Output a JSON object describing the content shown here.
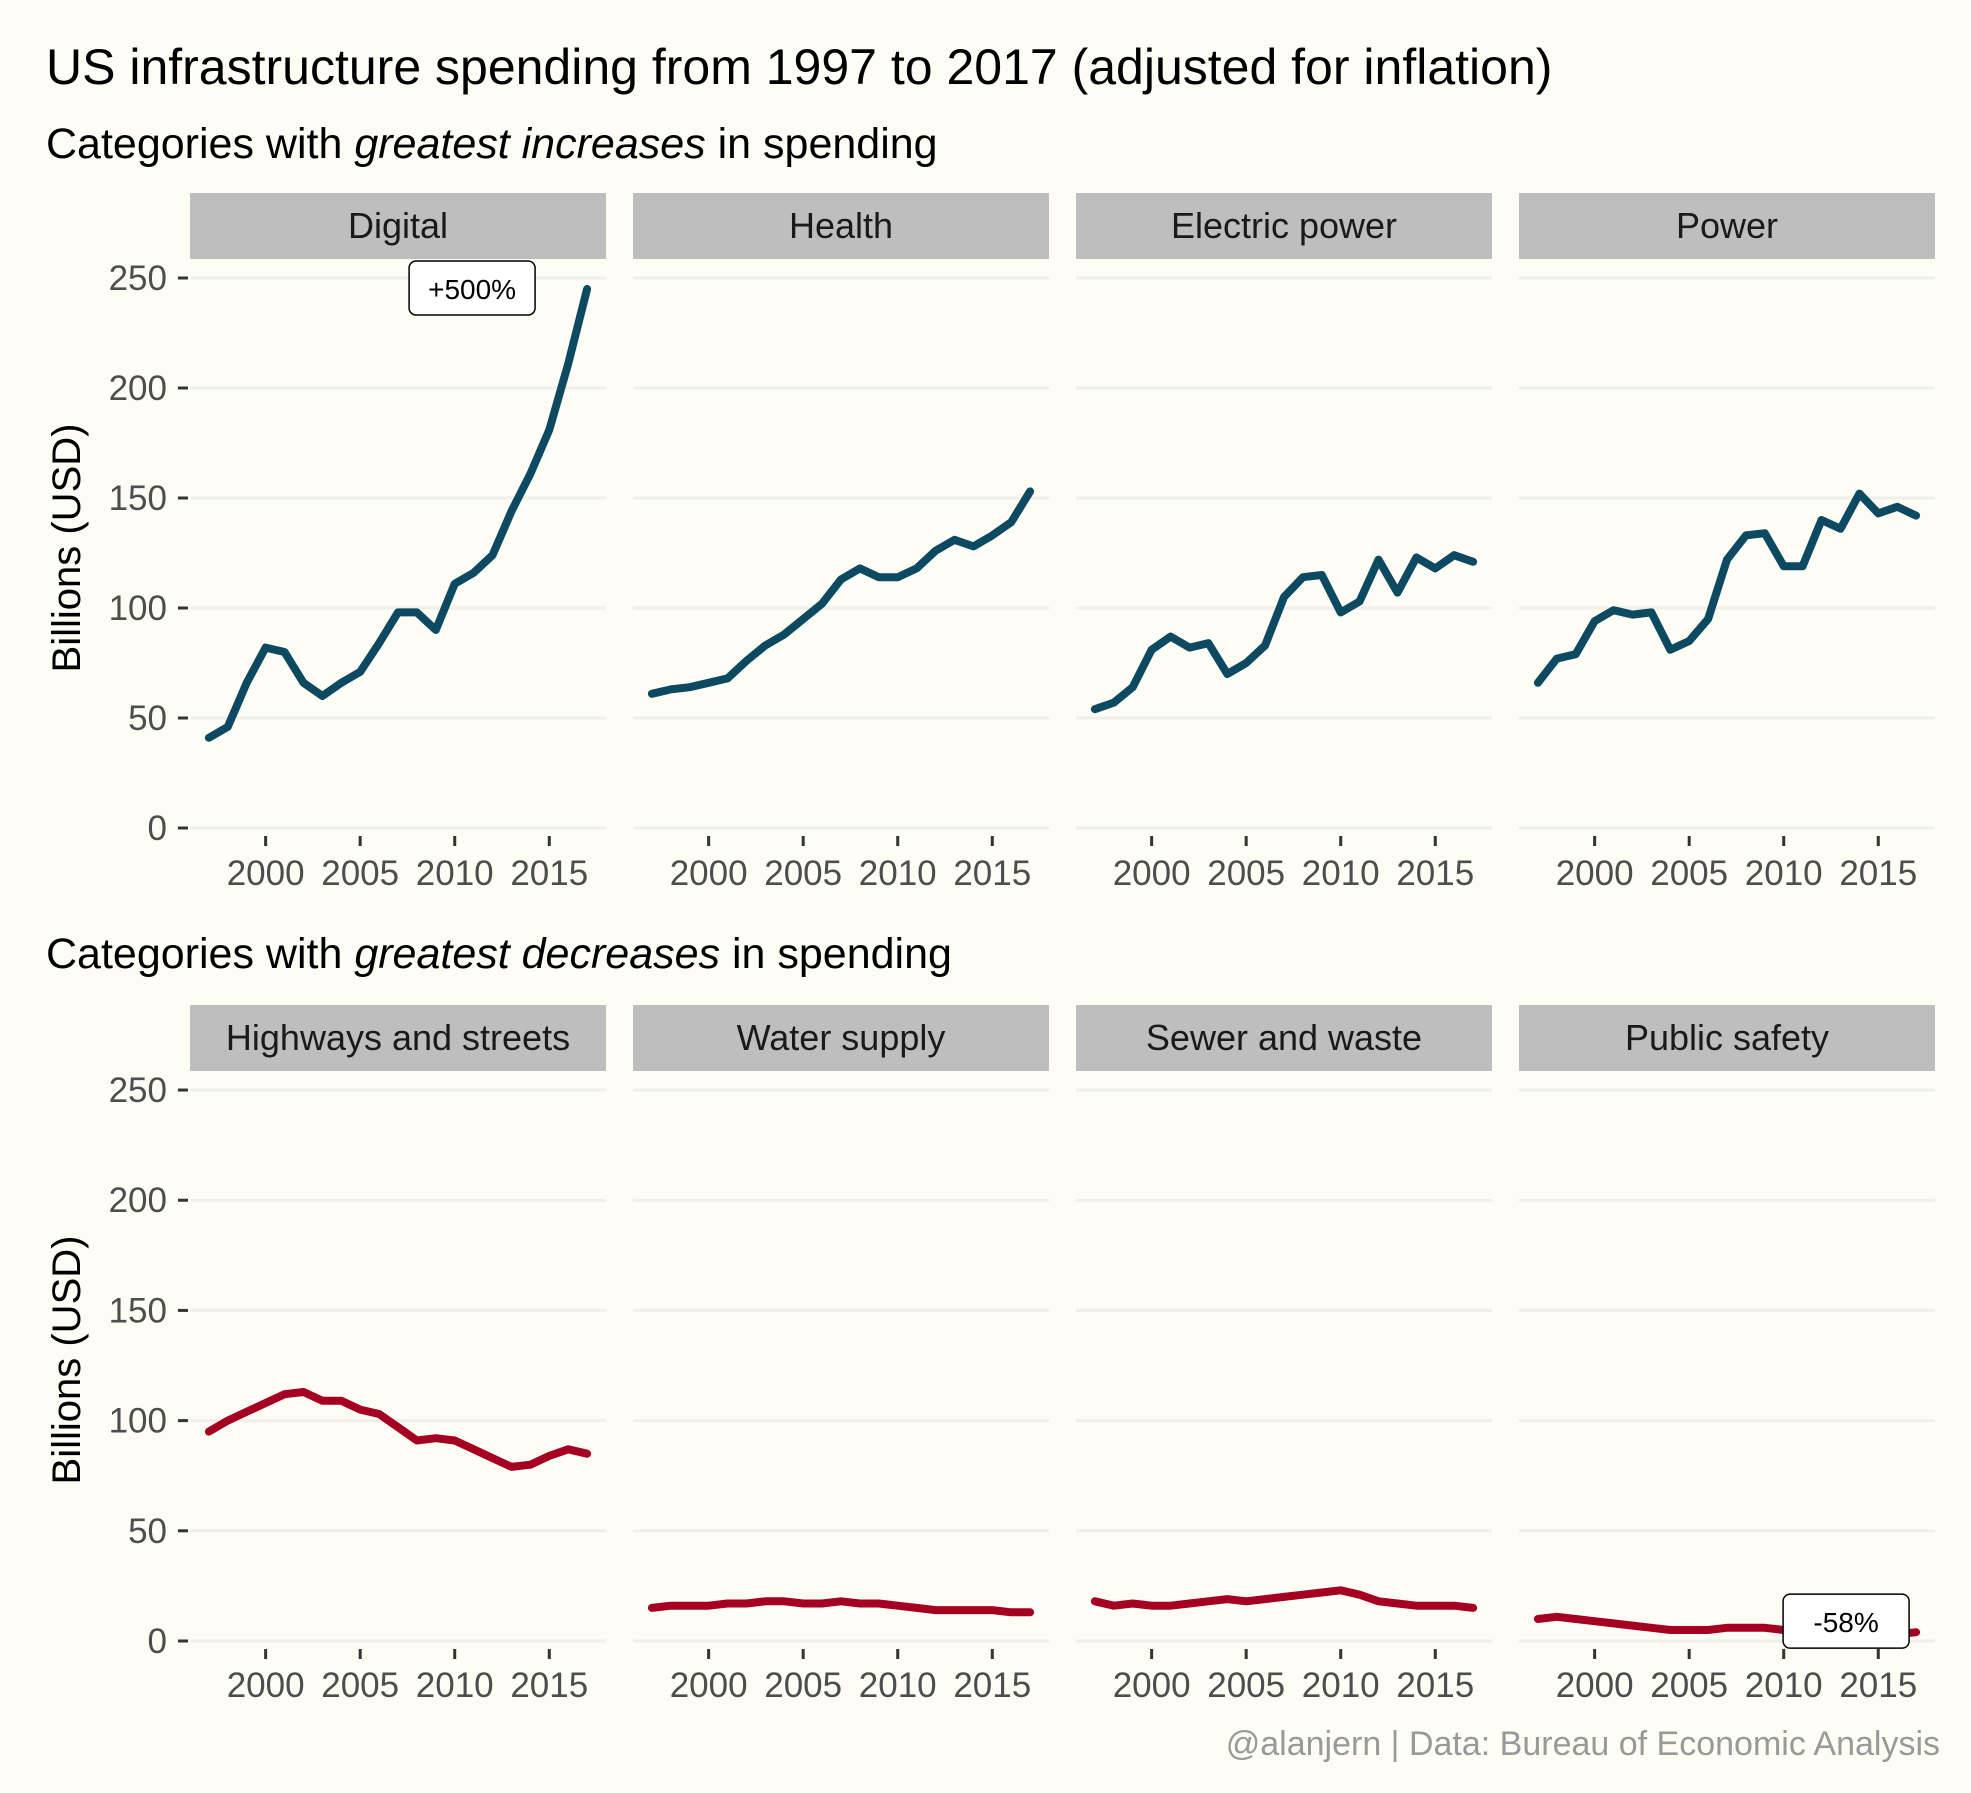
{
  "title": "US infrastructure spending from 1997 to 2017 (adjusted for inflation)",
  "caption": "@alanjern | Data: Bureau of Economic Analysis",
  "chart_data": [
    {
      "type": "line",
      "subtitle_parts": [
        {
          "text": "Categories with ",
          "italic": false
        },
        {
          "text": "greatest increases",
          "italic": true
        },
        {
          "text": " in spending",
          "italic": false
        }
      ],
      "ylabel": "Billions (USD)",
      "ylim": [
        0,
        260
      ],
      "yticks": [
        0,
        50,
        100,
        150,
        200,
        250
      ],
      "xlim": [
        1996,
        2018
      ],
      "xticks": [
        2000,
        2005,
        2010,
        2015
      ],
      "color": "#0d4a61",
      "x": [
        1997,
        1998,
        1999,
        2000,
        2001,
        2002,
        2003,
        2004,
        2005,
        2006,
        2007,
        2008,
        2009,
        2010,
        2011,
        2012,
        2013,
        2014,
        2015,
        2016,
        2017
      ],
      "panels": [
        {
          "name": "Digital",
          "values": [
            41,
            46,
            66,
            82,
            80,
            66,
            60,
            66,
            71,
            84,
            98,
            98,
            90,
            111,
            116,
            124,
            144,
            161,
            181,
            211,
            245
          ],
          "annotation": "+500%"
        },
        {
          "name": "Health",
          "values": [
            61,
            63,
            64,
            66,
            68,
            76,
            83,
            88,
            95,
            102,
            113,
            118,
            114,
            114,
            118,
            126,
            131,
            128,
            133,
            139,
            153
          ],
          "annotation": null
        },
        {
          "name": "Electric power",
          "values": [
            54,
            57,
            64,
            81,
            87,
            82,
            84,
            70,
            75,
            83,
            105,
            114,
            115,
            98,
            103,
            122,
            107,
            123,
            118,
            124,
            121
          ],
          "annotation": null
        },
        {
          "name": "Power",
          "values": [
            66,
            77,
            79,
            94,
            99,
            97,
            98,
            81,
            85,
            95,
            122,
            133,
            134,
            119,
            119,
            140,
            136,
            152,
            143,
            146,
            142
          ],
          "annotation": null
        }
      ]
    },
    {
      "type": "line",
      "subtitle_parts": [
        {
          "text": "Categories with ",
          "italic": false
        },
        {
          "text": "greatest decreases",
          "italic": true
        },
        {
          "text": " in spending",
          "italic": false
        }
      ],
      "ylabel": "Billions (USD)",
      "ylim": [
        0,
        260
      ],
      "yticks": [
        0,
        50,
        100,
        150,
        200,
        250
      ],
      "xlim": [
        1996,
        2018
      ],
      "xticks": [
        2000,
        2005,
        2010,
        2015
      ],
      "color": "#a50021",
      "x": [
        1997,
        1998,
        1999,
        2000,
        2001,
        2002,
        2003,
        2004,
        2005,
        2006,
        2007,
        2008,
        2009,
        2010,
        2011,
        2012,
        2013,
        2014,
        2015,
        2016,
        2017
      ],
      "panels": [
        {
          "name": "Highways and streets",
          "values": [
            95,
            100,
            104,
            108,
            112,
            113,
            109,
            109,
            105,
            103,
            97,
            91,
            92,
            91,
            87,
            83,
            79,
            80,
            84,
            87,
            85
          ],
          "annotation": null
        },
        {
          "name": "Water supply",
          "values": [
            15,
            16,
            16,
            16,
            17,
            17,
            18,
            18,
            17,
            17,
            18,
            17,
            17,
            16,
            15,
            14,
            14,
            14,
            14,
            13,
            13
          ],
          "annotation": null
        },
        {
          "name": "Sewer and waste",
          "values": [
            18,
            16,
            17,
            16,
            16,
            17,
            18,
            19,
            18,
            19,
            20,
            21,
            22,
            23,
            21,
            18,
            17,
            16,
            16,
            16,
            15
          ],
          "annotation": null
        },
        {
          "name": "Public safety",
          "values": [
            10,
            11,
            10,
            9,
            8,
            7,
            6,
            5,
            5,
            5,
            6,
            6,
            6,
            5,
            5,
            5,
            4,
            3,
            3,
            3,
            4
          ],
          "annotation": "-58%"
        }
      ]
    }
  ]
}
